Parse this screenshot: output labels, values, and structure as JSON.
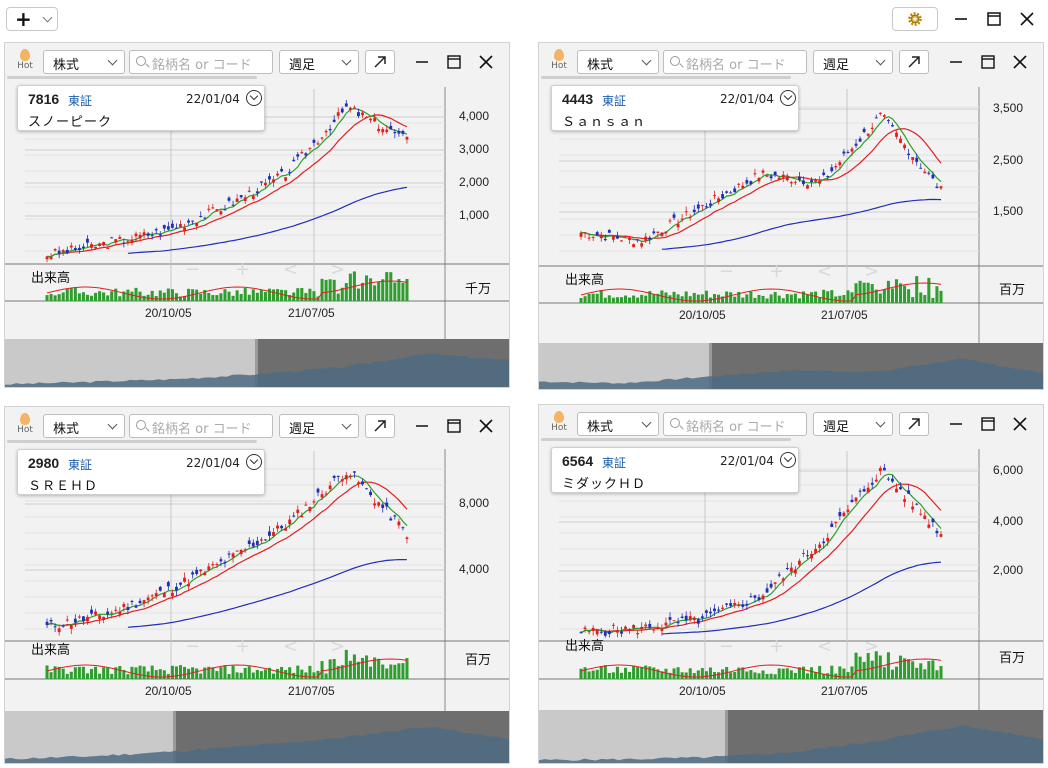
{
  "toolbar": {
    "add_label": "+",
    "icons": [
      "plus-icon",
      "chevron-down-icon",
      "gear-icon",
      "minimize-icon",
      "maximize-icon",
      "close-icon"
    ]
  },
  "common": {
    "hot_label": "Hot",
    "type_select": "株式",
    "search_placeholder": "銘柄名 or コード",
    "period_select": "週足",
    "volume_label": "出来高",
    "x_ticks": [
      "20/10/05",
      "21/07/05"
    ]
  },
  "panels": [
    {
      "code": "7816",
      "market": "東証",
      "date": "22/01/04",
      "name": "スノーピーク",
      "unit": "千万",
      "y_ticks": [
        "4,000",
        "3,000",
        "2,000",
        "1,000"
      ]
    },
    {
      "code": "4443",
      "market": "東証",
      "date": "22/01/04",
      "name": "Ｓａｎｓａｎ",
      "unit": "百万",
      "y_ticks": [
        "3,500",
        "2,500",
        "1,500"
      ]
    },
    {
      "code": "2980",
      "market": "東証",
      "date": "22/01/04",
      "name": "ＳＲＥＨＤ",
      "unit": "百万",
      "y_ticks": [
        "8,000",
        "4,000"
      ]
    },
    {
      "code": "6564",
      "market": "東証",
      "date": "22/01/04",
      "name": "ミダックＨＤ",
      "unit": "百万",
      "y_ticks": [
        "6,000",
        "4,000",
        "2,000"
      ]
    }
  ],
  "colors": {
    "up": "#e02020",
    "down": "#1f2fb8",
    "ma_short": "#2aa02a",
    "ma_mid": "#e02020",
    "ma_long": "#1f2fb8",
    "volume": "#2e9e2e"
  }
}
